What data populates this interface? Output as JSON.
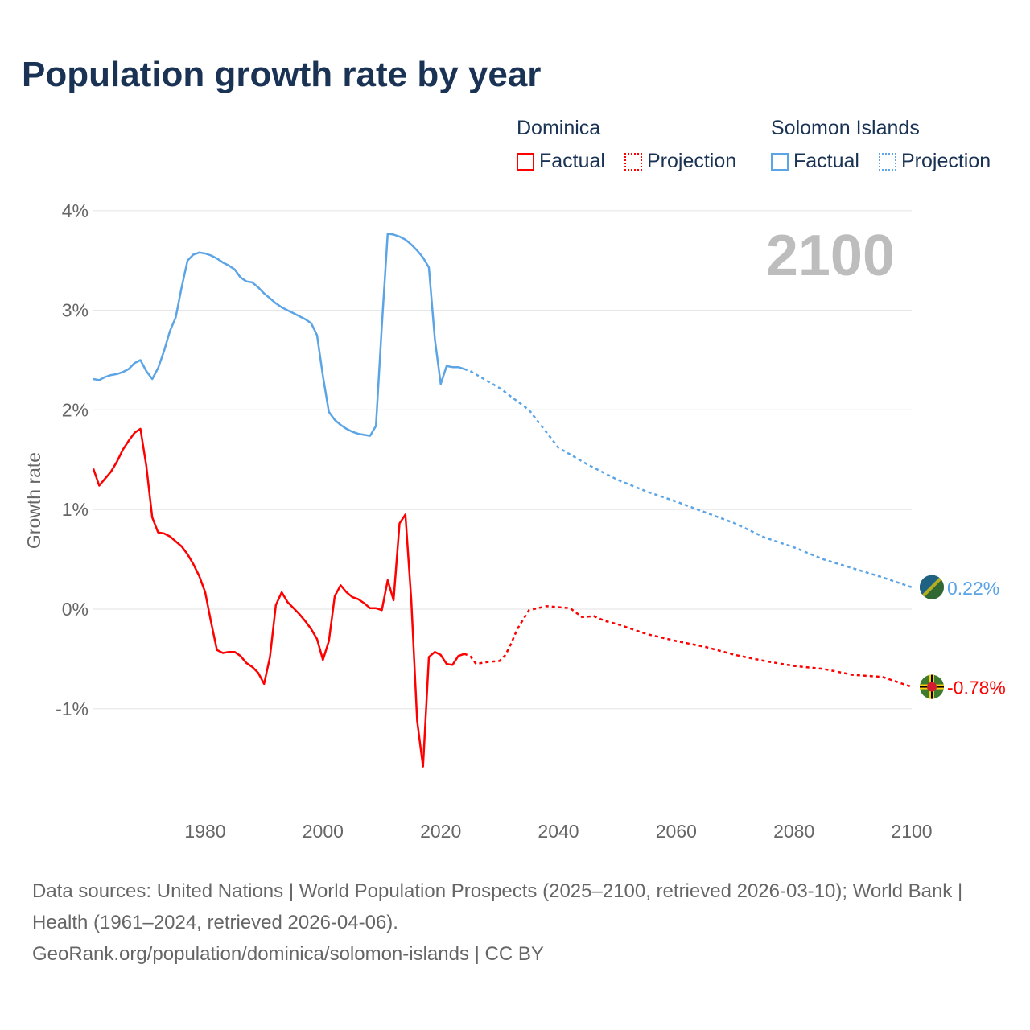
{
  "chart_data": {
    "type": "line",
    "title": "Population growth rate by year",
    "ylabel": "Growth rate",
    "xlabel": "",
    "xlim": [
      1961,
      2100
    ],
    "ylim": [
      -2,
      4
    ],
    "x_ticks": [
      "1980",
      "2000",
      "2020",
      "2040",
      "2060",
      "2080",
      "2100"
    ],
    "x_tick_values": [
      1980,
      2000,
      2020,
      2040,
      2060,
      2080,
      2100
    ],
    "y_ticks": [
      "4%",
      "3%",
      "2%",
      "1%",
      "0%",
      "-1%"
    ],
    "y_tick_values": [
      4,
      3,
      2,
      1,
      0,
      -1
    ],
    "grid": true,
    "year_label": "2100",
    "legend": {
      "groups": [
        {
          "name": "Dominica",
          "factual": "Factual",
          "projection": "Projection",
          "color": "#ff0000"
        },
        {
          "name": "Solomon Islands",
          "factual": "Factual",
          "projection": "Projection",
          "color": "#5ba4e6"
        }
      ]
    },
    "series": [
      {
        "name": "Dominica",
        "color": "#ff0000",
        "end_label": "-0.78%",
        "factual": {
          "x": [
            1961,
            1962,
            1963,
            1964,
            1965,
            1966,
            1967,
            1968,
            1969,
            1970,
            1971,
            1972,
            1973,
            1974,
            1975,
            1976,
            1977,
            1978,
            1979,
            1980,
            1981,
            1982,
            1983,
            1984,
            1985,
            1986,
            1987,
            1988,
            1989,
            1990,
            1991,
            1992,
            1993,
            1994,
            1995,
            1996,
            1997,
            1998,
            1999,
            2000,
            2001,
            2002,
            2003,
            2004,
            2005,
            2006,
            2007,
            2008,
            2009,
            2010,
            2011,
            2012,
            2013,
            2014,
            2015,
            2016,
            2017,
            2018,
            2019,
            2020,
            2021,
            2022,
            2023,
            2024
          ],
          "y": [
            1.41,
            1.24,
            1.31,
            1.38,
            1.48,
            1.6,
            1.69,
            1.77,
            1.81,
            1.44,
            0.92,
            0.77,
            0.76,
            0.73,
            0.68,
            0.63,
            0.55,
            0.45,
            0.33,
            0.17,
            -0.13,
            -0.41,
            -0.44,
            -0.43,
            -0.43,
            -0.47,
            -0.54,
            -0.58,
            -0.64,
            -0.75,
            -0.48,
            0.04,
            0.17,
            0.07,
            0.01,
            -0.05,
            -0.12,
            -0.2,
            -0.3,
            -0.51,
            -0.32,
            0.13,
            0.24,
            0.17,
            0.12,
            0.1,
            0.06,
            0.01,
            0.01,
            -0.01,
            0.29,
            0.09,
            0.86,
            0.95,
            0.09,
            -1.12,
            -1.58,
            -0.48,
            -0.43,
            -0.46,
            -0.55,
            -0.56,
            -0.47,
            -0.45
          ]
        },
        "projection": {
          "x": [
            2024,
            2025,
            2026,
            2028,
            2030,
            2031,
            2032,
            2033,
            2035,
            2038,
            2042,
            2044,
            2046,
            2048,
            2050,
            2055,
            2060,
            2065,
            2070,
            2075,
            2080,
            2085,
            2090,
            2095,
            2100
          ],
          "y": [
            -0.45,
            -0.47,
            -0.55,
            -0.53,
            -0.52,
            -0.46,
            -0.34,
            -0.2,
            -0.01,
            0.03,
            0.01,
            -0.08,
            -0.07,
            -0.12,
            -0.15,
            -0.25,
            -0.32,
            -0.38,
            -0.46,
            -0.52,
            -0.57,
            -0.6,
            -0.66,
            -0.68,
            -0.78
          ]
        }
      },
      {
        "name": "Solomon Islands",
        "color": "#5ba4e6",
        "end_label": "0.22%",
        "factual": {
          "x": [
            1961,
            1962,
            1963,
            1964,
            1965,
            1966,
            1967,
            1968,
            1969,
            1970,
            1971,
            1972,
            1973,
            1974,
            1975,
            1976,
            1977,
            1978,
            1979,
            1980,
            1981,
            1982,
            1983,
            1984,
            1985,
            1986,
            1987,
            1988,
            1989,
            1990,
            1991,
            1992,
            1993,
            1994,
            1995,
            1996,
            1997,
            1998,
            1999,
            2000,
            2001,
            2002,
            2003,
            2004,
            2005,
            2006,
            2007,
            2008,
            2009,
            2010,
            2011,
            2012,
            2013,
            2014,
            2015,
            2016,
            2017,
            2018,
            2019,
            2020,
            2021,
            2022,
            2023,
            2024
          ],
          "y": [
            2.31,
            2.3,
            2.33,
            2.35,
            2.36,
            2.38,
            2.41,
            2.47,
            2.5,
            2.39,
            2.31,
            2.42,
            2.59,
            2.79,
            2.93,
            3.23,
            3.5,
            3.56,
            3.58,
            3.57,
            3.55,
            3.52,
            3.48,
            3.45,
            3.41,
            3.33,
            3.29,
            3.28,
            3.23,
            3.17,
            3.12,
            3.07,
            3.03,
            3.0,
            2.97,
            2.94,
            2.91,
            2.87,
            2.75,
            2.34,
            1.98,
            1.9,
            1.85,
            1.81,
            1.78,
            1.76,
            1.75,
            1.74,
            1.84,
            2.84,
            3.77,
            3.76,
            3.74,
            3.71,
            3.66,
            3.6,
            3.53,
            3.43,
            2.71,
            2.26,
            2.44,
            2.43,
            2.43,
            2.41
          ]
        },
        "projection": {
          "x": [
            2024,
            2025,
            2030,
            2035,
            2040,
            2045,
            2050,
            2055,
            2060,
            2065,
            2070,
            2075,
            2080,
            2085,
            2090,
            2095,
            2100
          ],
          "y": [
            2.41,
            2.39,
            2.22,
            2.0,
            1.62,
            1.45,
            1.3,
            1.18,
            1.08,
            0.97,
            0.86,
            0.72,
            0.62,
            0.5,
            0.41,
            0.32,
            0.22
          ]
        }
      }
    ]
  },
  "footer": {
    "line1": "Data sources: United Nations | World Population Prospects (2025–2100, retrieved 2026-03-10); World Bank | Health (1961–2024, retrieved 2026-04-06).",
    "line2": "GeoRank.org/population/dominica/solomon-islands | CC BY"
  }
}
